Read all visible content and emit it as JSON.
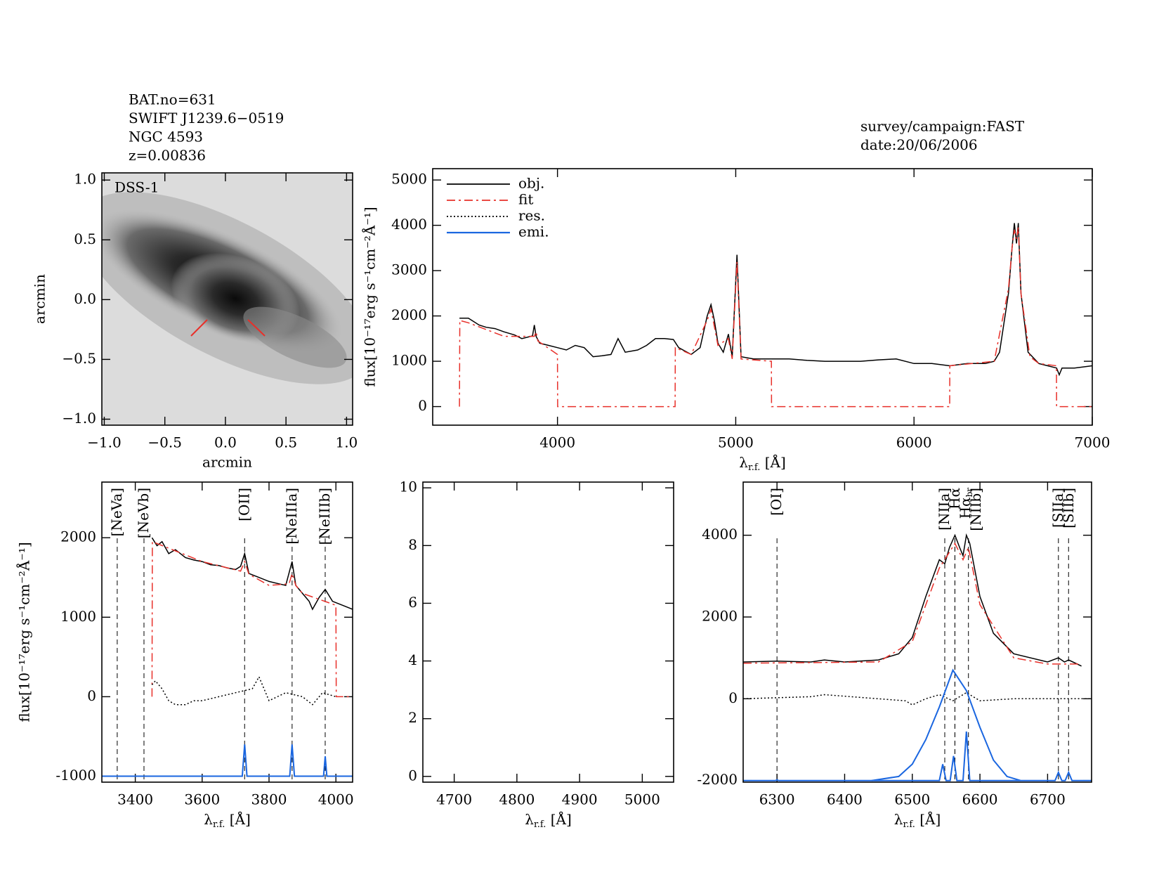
{
  "chart_data": [
    {
      "type": "image",
      "info": [
        "BAT.no=631",
        "SWIFT J1239.6−0519",
        "NGC 4593",
        "z=0.00836"
      ],
      "label": "DSS-1",
      "xlabel": "arcmin",
      "ylabel": "arcmin",
      "xlim": [
        -1.02,
        1.05
      ],
      "ylim": [
        -1.05,
        1.06
      ],
      "xticks": [
        {
          "value": -1.0,
          "label": "−1.0"
        },
        {
          "value": -0.5,
          "label": "−0.5"
        },
        {
          "value": 0.0,
          "label": "0.0"
        },
        {
          "value": 0.5,
          "label": "0.5"
        },
        {
          "value": 1.0,
          "label": "1.0"
        }
      ],
      "yticks": [
        {
          "value": -1.0,
          "label": "−1.0"
        },
        {
          "value": -0.5,
          "label": "−0.5"
        },
        {
          "value": 0.0,
          "label": "0.0"
        },
        {
          "value": 0.5,
          "label": "0.5"
        },
        {
          "value": 1.0,
          "label": "1.0"
        }
      ]
    },
    {
      "type": "line",
      "info": [
        "survey/campaign:FAST",
        "date:20/06/2006"
      ],
      "legend": true,
      "xlabel": {
        "main": "λ",
        "sub": "r.f.",
        "unit": " [Å]"
      },
      "ylabel": "flux[10⁻¹⁷erg s⁻¹cm⁻²Å⁻¹]",
      "xlim": [
        3300,
        7000
      ],
      "ylim": [
        -410,
        5250
      ],
      "xticks": [
        4000,
        5000,
        6000,
        7000
      ],
      "yticks": [
        0,
        1000,
        2000,
        3000,
        4000,
        5000
      ],
      "series": [
        {
          "name": "obj.",
          "color": "#000000",
          "style": "solid",
          "x": [
            3450,
            3500,
            3560,
            3600,
            3650,
            3700,
            3760,
            3800,
            3860,
            3870,
            3880,
            3900,
            3950,
            4000,
            4050,
            4100,
            4150,
            4200,
            4250,
            4300,
            4340,
            4380,
            4450,
            4500,
            4550,
            4600,
            4650,
            4680,
            4750,
            4800,
            4840,
            4861,
            4880,
            4900,
            4930,
            4959,
            4980,
            5007,
            5030,
            5100,
            5200,
            5300,
            5400,
            5500,
            5600,
            5700,
            5800,
            5900,
            6000,
            6100,
            6200,
            6300,
            6400,
            6450,
            6480,
            6530,
            6550,
            6563,
            6575,
            6585,
            6600,
            6640,
            6700,
            6750,
            6800,
            6815,
            6830,
            6900,
            7000
          ],
          "values": [
            1950,
            1950,
            1800,
            1750,
            1720,
            1650,
            1580,
            1500,
            1560,
            1800,
            1550,
            1400,
            1350,
            1300,
            1250,
            1350,
            1300,
            1100,
            1120,
            1150,
            1500,
            1200,
            1250,
            1350,
            1500,
            1500,
            1480,
            1300,
            1150,
            1300,
            2000,
            2250,
            1900,
            1400,
            1200,
            1600,
            1100,
            3350,
            1100,
            1050,
            1050,
            1050,
            1020,
            1000,
            1000,
            1000,
            1030,
            1050,
            950,
            950,
            900,
            950,
            950,
            1000,
            1200,
            2500,
            3500,
            4050,
            3600,
            4050,
            2500,
            1200,
            950,
            900,
            850,
            700,
            850,
            850,
            900
          ]
        },
        {
          "name": "fit",
          "color": "#e8302a",
          "style": "dashdot",
          "x": [
            3450,
            3452,
            3500,
            3700,
            3870,
            3880,
            3890,
            4000,
            4001,
            4660,
            4661,
            4750,
            4840,
            4861,
            4900,
            4959,
            4980,
            5007,
            5030,
            5200,
            5201,
            6200,
            6201,
            6450,
            6530,
            6550,
            6563,
            6575,
            6585,
            6600,
            6650,
            6700,
            6799,
            6800,
            7000
          ],
          "values": [
            0,
            1900,
            1850,
            1550,
            1550,
            1650,
            1450,
            1150,
            0,
            0,
            1300,
            1150,
            1900,
            2150,
            1350,
            1500,
            1050,
            3200,
            1050,
            1000,
            0,
            0,
            900,
            1000,
            2600,
            3500,
            3900,
            3700,
            3950,
            2500,
            1100,
            950,
            900,
            0,
            0
          ]
        },
        {
          "name": "res.",
          "color": "#000000",
          "style": "dotted",
          "x": [],
          "values": []
        },
        {
          "name": "emi.",
          "color": "#1a66e0",
          "style": "solid",
          "x": [],
          "values": []
        }
      ]
    },
    {
      "type": "line",
      "ylabel": "flux[10⁻¹⁷erg s⁻¹cm⁻²Å⁻¹]",
      "xlabel": {
        "main": "λ",
        "sub": "r.f.",
        "unit": " [Å]"
      },
      "xlim": [
        3300,
        4050
      ],
      "ylim": [
        -1075,
        2700
      ],
      "xticks": [
        3400,
        3600,
        3800,
        4000
      ],
      "yticks": [
        -1000,
        0,
        1000,
        2000
      ],
      "annotation_color": "#e8302a",
      "annotations": [
        {
          "x": 3346,
          "label": "[NeVa]"
        },
        {
          "x": 3426,
          "label": "[NeVb]"
        },
        {
          "x": 3727,
          "label": "[OII]"
        },
        {
          "x": 3869,
          "label": "[NeIIIa]"
        },
        {
          "x": 3968,
          "label": "[NeIIIb]"
        }
      ],
      "series": [
        {
          "color": "#000000",
          "style": "solid",
          "x": [
            3450,
            3465,
            3480,
            3500,
            3520,
            3550,
            3575,
            3600,
            3625,
            3650,
            3675,
            3700,
            3715,
            3727,
            3740,
            3770,
            3800,
            3830,
            3850,
            3869,
            3880,
            3900,
            3920,
            3930,
            3950,
            3968,
            3990,
            4020,
            4050
          ],
          "values": [
            2000,
            1900,
            1950,
            1800,
            1850,
            1750,
            1720,
            1700,
            1660,
            1650,
            1620,
            1600,
            1640,
            1800,
            1550,
            1500,
            1450,
            1420,
            1400,
            1700,
            1400,
            1300,
            1200,
            1100,
            1250,
            1350,
            1200,
            1150,
            1100
          ]
        },
        {
          "color": "#e8302a",
          "style": "dashdot",
          "x": [
            3450,
            3451,
            3600,
            3715,
            3727,
            3740,
            3800,
            3860,
            3869,
            3880,
            3900,
            4000,
            4001,
            4050
          ],
          "values": [
            0,
            1950,
            1700,
            1580,
            1700,
            1540,
            1400,
            1420,
            1550,
            1400,
            1300,
            1150,
            0,
            0
          ]
        },
        {
          "color": "#000000",
          "style": "dotted",
          "x": [
            3450,
            3460,
            3480,
            3500,
            3520,
            3550,
            3575,
            3600,
            3650,
            3700,
            3750,
            3770,
            3800,
            3850,
            3900,
            3930,
            3960,
            4000
          ],
          "values": [
            150,
            200,
            100,
            -50,
            -100,
            -100,
            -50,
            -50,
            0,
            50,
            100,
            250,
            -50,
            50,
            0,
            -100,
            50,
            0
          ]
        },
        {
          "color": "#1a66e0",
          "style": "solid",
          "x": [
            3300,
            3720,
            3727,
            3734,
            3862,
            3869,
            3876,
            3963,
            3968,
            3973,
            4050
          ],
          "values": [
            -1000,
            -1000,
            -600,
            -1000,
            -1000,
            -600,
            -1000,
            -1000,
            -750,
            -1000,
            -1000
          ]
        }
      ]
    },
    {
      "type": "line",
      "xlabel": {
        "main": "λ",
        "sub": "r.f.",
        "unit": " [Å]"
      },
      "xlim": [
        4650,
        5050
      ],
      "ylim": [
        -0.2,
        10.2
      ],
      "xticks": [
        4700,
        4800,
        4900,
        5000
      ],
      "yticks": [
        0,
        2,
        4,
        6,
        8,
        10
      ],
      "series": []
    },
    {
      "type": "line",
      "xlabel": {
        "main": "λ",
        "sub": "r.f.",
        "unit": " [Å]"
      },
      "xlim": [
        6250,
        6765
      ],
      "ylim": [
        -2040,
        5300
      ],
      "xticks": [
        6300,
        6400,
        6500,
        6600,
        6700
      ],
      "yticks": [
        -2000,
        0,
        2000,
        4000
      ],
      "annotation_color": "#000000",
      "annotations": [
        {
          "x": 6300,
          "label": "[OI]"
        },
        {
          "x": 6548,
          "label": "[NIIa]"
        },
        {
          "x": 6563,
          "label": "Hα"
        },
        {
          "x": 6563,
          "label": "Hα",
          "sub": "br"
        },
        {
          "x": 6583,
          "label": "[NIIb]"
        },
        {
          "x": 6716,
          "label": "[SIIa]"
        },
        {
          "x": 6731,
          "label": "[SIIb]"
        }
      ],
      "series": [
        {
          "color": "#000000",
          "style": "solid",
          "x": [
            6250,
            6300,
            6350,
            6370,
            6400,
            6450,
            6480,
            6500,
            6520,
            6540,
            6548,
            6555,
            6563,
            6570,
            6575,
            6580,
            6585,
            6600,
            6620,
            6650,
            6700,
            6716,
            6725,
            6731,
            6750
          ],
          "values": [
            900,
            920,
            900,
            950,
            900,
            950,
            1100,
            1500,
            2500,
            3400,
            3300,
            3700,
            4000,
            3700,
            3500,
            4000,
            3800,
            2500,
            1600,
            1100,
            900,
            1000,
            900,
            950,
            800
          ]
        },
        {
          "color": "#e8302a",
          "style": "dashdot",
          "x": [
            6250,
            6450,
            6500,
            6540,
            6563,
            6575,
            6583,
            6600,
            6650,
            6700,
            6750
          ],
          "values": [
            870,
            900,
            1400,
            3200,
            3800,
            3400,
            3700,
            2300,
            1000,
            850,
            850
          ]
        },
        {
          "color": "#000000",
          "style": "dotted",
          "x": [
            6250,
            6350,
            6370,
            6450,
            6490,
            6500,
            6520,
            6540,
            6560,
            6580,
            6600,
            6650,
            6765
          ],
          "values": [
            0,
            50,
            100,
            0,
            -50,
            -150,
            0,
            100,
            -50,
            150,
            -50,
            0,
            0
          ]
        },
        {
          "color": "#1a66e0",
          "style": "solid",
          "x": [
            6440,
            6480,
            6500,
            6520,
            6540,
            6560,
            6580,
            6600,
            6620,
            6640,
            6660
          ],
          "values": [
            -2000,
            -1900,
            -1600,
            -1000,
            -200,
            700,
            200,
            -700,
            -1500,
            -1900,
            -2000
          ]
        },
        {
          "color": "#1a66e0",
          "style": "solid",
          "x": [
            6250,
            6298,
            6300,
            6302,
            6540,
            6545,
            6550,
            6556,
            6561,
            6566,
            6575,
            6580,
            6585,
            6711,
            6716,
            6721,
            6726,
            6731,
            6736,
            6765
          ],
          "values": [
            -2000,
            -2000,
            -1980,
            -2000,
            -2000,
            -1600,
            -2000,
            -2000,
            -1400,
            -2000,
            -2000,
            -800,
            -2000,
            -2000,
            -1800,
            -2000,
            -2000,
            -1800,
            -2000,
            -2000
          ]
        }
      ]
    }
  ]
}
